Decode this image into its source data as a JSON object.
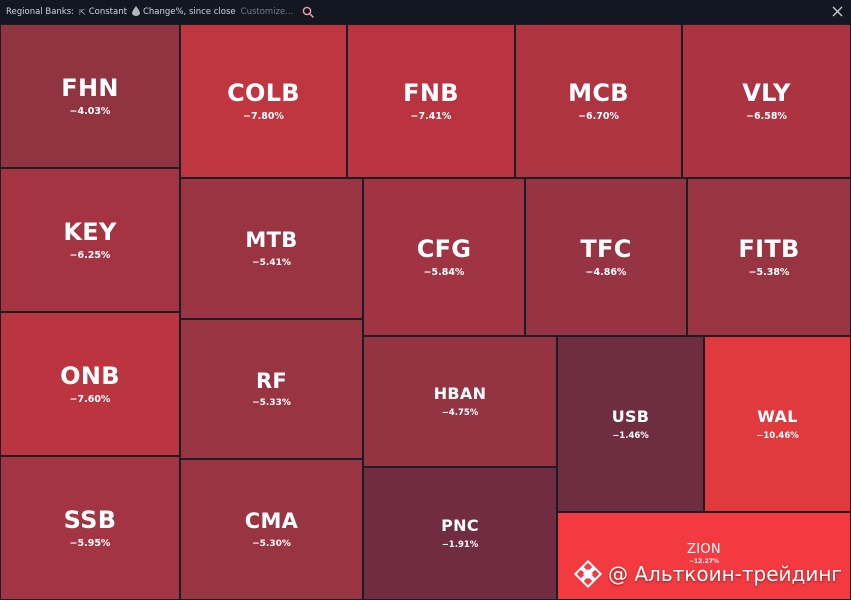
{
  "toolbar": {
    "title": "Regional Banks:",
    "size_icon": "cursor-icon",
    "size_label": "Constant",
    "color_icon": "drop-icon",
    "color_label": "Change%, since close",
    "customize_label": "Customize...",
    "search_icon": "search-icon",
    "close_icon": "close-icon"
  },
  "tiles": [
    {
      "symbol": "FHN",
      "change": "−4.03%",
      "color": "#903442"
    },
    {
      "symbol": "COLB",
      "change": "−7.80%",
      "color": "#bf3540"
    },
    {
      "symbol": "FNB",
      "change": "−7.41%",
      "color": "#b93440"
    },
    {
      "symbol": "MCB",
      "change": "−6.70%",
      "color": "#ae3442"
    },
    {
      "symbol": "VLY",
      "change": "−6.58%",
      "color": "#ac3442"
    },
    {
      "symbol": "KEY",
      "change": "−6.25%",
      "color": "#a53442"
    },
    {
      "symbol": "MTB",
      "change": "−5.41%",
      "color": "#9a3443"
    },
    {
      "symbol": "CFG",
      "change": "−5.84%",
      "color": "#a03443"
    },
    {
      "symbol": "TFC",
      "change": "−4.86%",
      "color": "#963443"
    },
    {
      "symbol": "FITB",
      "change": "−5.38%",
      "color": "#993443"
    },
    {
      "symbol": "ONB",
      "change": "−7.60%",
      "color": "#bb3540"
    },
    {
      "symbol": "RF",
      "change": "−5.33%",
      "color": "#993443"
    },
    {
      "symbol": "HBAN",
      "change": "−4.75%",
      "color": "#943443"
    },
    {
      "symbol": "USB",
      "change": "−1.46%",
      "color": "#6f2d42"
    },
    {
      "symbol": "WAL",
      "change": "−10.46%",
      "color": "#e0393e"
    },
    {
      "symbol": "SSB",
      "change": "−5.95%",
      "color": "#a23443"
    },
    {
      "symbol": "CMA",
      "change": "−5.30%",
      "color": "#993443"
    },
    {
      "symbol": "PNC",
      "change": "−1.91%",
      "color": "#722c42"
    },
    {
      "symbol": "ZION",
      "change": "−12.27%",
      "color": "#f23a40"
    }
  ],
  "watermark": {
    "logo_icon": "binance-diamond-icon",
    "text": "@ Альткоин-трейдинг"
  }
}
